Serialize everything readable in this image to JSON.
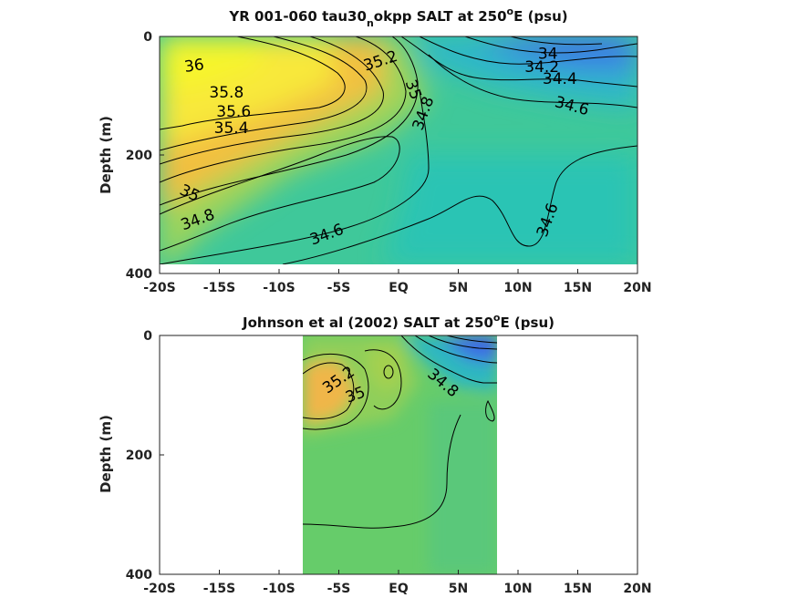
{
  "chart_data": [
    {
      "type": "heatmap",
      "title": {
        "main": "YR 001-060 tau30",
        "sub": "n",
        "rest": "okpp SALT at 250",
        "sup": "o",
        "tail": "E (psu)"
      },
      "ylabel": "Depth (m)",
      "x_tick_labels": [
        "-20S",
        "-15S",
        "-10S",
        "-5S",
        "EQ",
        "5N",
        "10N",
        "15N",
        "20N"
      ],
      "x_ticks": [
        -20,
        -15,
        -10,
        -5,
        0,
        5,
        10,
        15,
        20
      ],
      "y_tick_labels": [
        "0",
        "200",
        "400"
      ],
      "y_ticks": [
        0,
        200,
        400
      ],
      "xlim": [
        -20,
        20
      ],
      "ylim": [
        0,
        400
      ],
      "data_extent": {
        "x": [
          -20,
          20
        ],
        "depth": [
          0,
          380
        ]
      },
      "contour_labels": [
        {
          "text": "36",
          "x": -17.1,
          "depth": 50
        },
        {
          "text": "35.8",
          "x": -14.4,
          "depth": 95
        },
        {
          "text": "35.6",
          "x": -13.8,
          "depth": 128
        },
        {
          "text": "35.4",
          "x": -14.0,
          "depth": 155
        },
        {
          "text": "35.2",
          "x": -1.5,
          "depth": 42
        },
        {
          "text": "35",
          "x": 1.2,
          "depth": 90
        },
        {
          "text": "34.8",
          "x": 2.1,
          "depth": 130
        },
        {
          "text": "34",
          "x": 12.5,
          "depth": 30
        },
        {
          "text": "34.2",
          "x": 12.0,
          "depth": 52
        },
        {
          "text": "34.4",
          "x": 13.5,
          "depth": 72
        },
        {
          "text": "34.6",
          "x": 14.5,
          "depth": 118
        },
        {
          "text": "35",
          "x": -17.5,
          "depth": 265
        },
        {
          "text": "34.8",
          "x": -16.8,
          "depth": 310
        },
        {
          "text": "34.6",
          "x": -6.0,
          "depth": 335
        },
        {
          "text": "34.6",
          "x": 12.5,
          "depth": 310
        }
      ],
      "colorscale": [
        "#3a6ee8",
        "#2bb5c8",
        "#55c98a",
        "#8fcf5a",
        "#f0c040",
        "#f7f52a"
      ]
    },
    {
      "type": "heatmap",
      "title": {
        "main": "Johnson et al (2002) SALT at 250",
        "sup": "o",
        "tail": "E (psu)"
      },
      "ylabel": "Depth (m)",
      "x_tick_labels": [
        "-20S",
        "-15S",
        "-10S",
        "-5S",
        "EQ",
        "5N",
        "10N",
        "15N",
        "20N"
      ],
      "x_ticks": [
        -20,
        -15,
        -10,
        -5,
        0,
        5,
        10,
        15,
        20
      ],
      "y_tick_labels": [
        "0",
        "200",
        "400"
      ],
      "y_ticks": [
        0,
        200,
        400
      ],
      "xlim": [
        -20,
        20
      ],
      "ylim": [
        0,
        400
      ],
      "data_extent": {
        "x": [
          -8,
          8.3
        ],
        "depth": [
          0,
          400
        ]
      },
      "contour_labels": [
        {
          "text": "35.2",
          "x": -5.0,
          "depth": 75
        },
        {
          "text": "35",
          "x": -3.6,
          "depth": 100
        },
        {
          "text": "34.8",
          "x": 3.7,
          "depth": 80
        }
      ],
      "colorscale": [
        "#3a6ee8",
        "#2bb5c8",
        "#55c98a",
        "#6ccf68",
        "#f0c040"
      ]
    }
  ]
}
